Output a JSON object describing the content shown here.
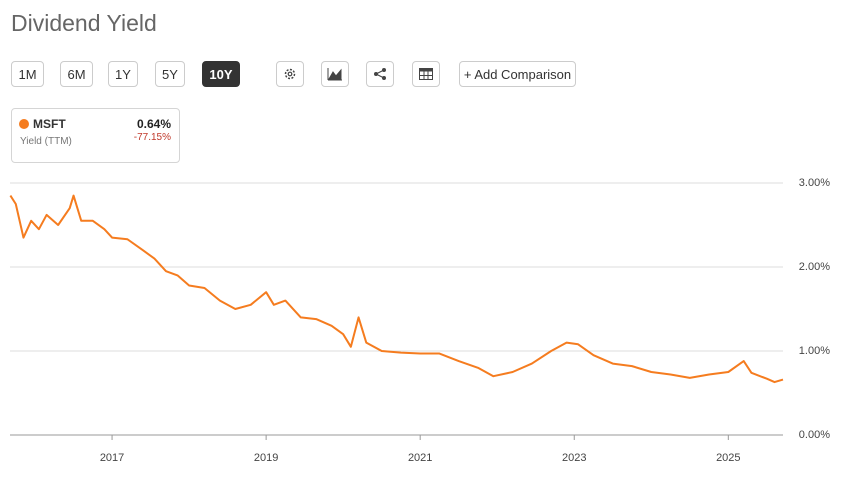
{
  "header": {
    "title": "Dividend Yield"
  },
  "toolbar": {
    "ranges": [
      "1M",
      "6M",
      "1Y",
      "5Y",
      "10Y"
    ],
    "active": "10Y",
    "add_comparison": "+ Add Comparison"
  },
  "chart_data": {
    "type": "line",
    "legend_card": {
      "value": "0.64%",
      "change": "-77.15%",
      "metric": "Yield (TTM)"
    },
    "x": [
      2015.68,
      2015.75,
      2015.85,
      2015.95,
      2016.05,
      2016.15,
      2016.3,
      2016.45,
      2016.5,
      2016.6,
      2016.75,
      2016.9,
      2017.0,
      2017.2,
      2017.4,
      2017.55,
      2017.7,
      2017.85,
      2018.0,
      2018.2,
      2018.4,
      2018.6,
      2018.8,
      2019.0,
      2019.1,
      2019.25,
      2019.45,
      2019.65,
      2019.85,
      2020.0,
      2020.1,
      2020.2,
      2020.3,
      2020.5,
      2020.75,
      2021.0,
      2021.25,
      2021.5,
      2021.75,
      2021.95,
      2022.2,
      2022.45,
      2022.7,
      2022.9,
      2023.05,
      2023.25,
      2023.5,
      2023.75,
      2024.0,
      2024.25,
      2024.5,
      2024.75,
      2025.0,
      2025.2,
      2025.3,
      2025.5,
      2025.6,
      2025.71
    ],
    "series": [
      {
        "name": "MSFT",
        "color": "#f57c1f",
        "values": [
          2.85,
          2.75,
          2.35,
          2.55,
          2.45,
          2.62,
          2.5,
          2.7,
          2.85,
          2.55,
          2.55,
          2.45,
          2.35,
          2.33,
          2.2,
          2.1,
          1.95,
          1.9,
          1.78,
          1.75,
          1.6,
          1.5,
          1.55,
          1.7,
          1.55,
          1.6,
          1.4,
          1.38,
          1.3,
          1.2,
          1.05,
          1.4,
          1.1,
          1.0,
          0.98,
          0.97,
          0.97,
          0.88,
          0.8,
          0.7,
          0.75,
          0.85,
          1.0,
          1.1,
          1.08,
          0.95,
          0.85,
          0.82,
          0.75,
          0.72,
          0.68,
          0.72,
          0.75,
          0.88,
          0.74,
          0.67,
          0.63,
          0.66
        ]
      }
    ],
    "xlim": [
      2015.675,
      2025.71
    ],
    "xticks": [
      2017,
      2019,
      2021,
      2023,
      2025
    ],
    "ylim": [
      0,
      3
    ],
    "yticks": [
      {
        "value": 0,
        "label": "0.00%"
      },
      {
        "value": 1,
        "label": "1.00%"
      },
      {
        "value": 2,
        "label": "2.00%"
      },
      {
        "value": 3,
        "label": "3.00%"
      }
    ],
    "grid": true
  }
}
